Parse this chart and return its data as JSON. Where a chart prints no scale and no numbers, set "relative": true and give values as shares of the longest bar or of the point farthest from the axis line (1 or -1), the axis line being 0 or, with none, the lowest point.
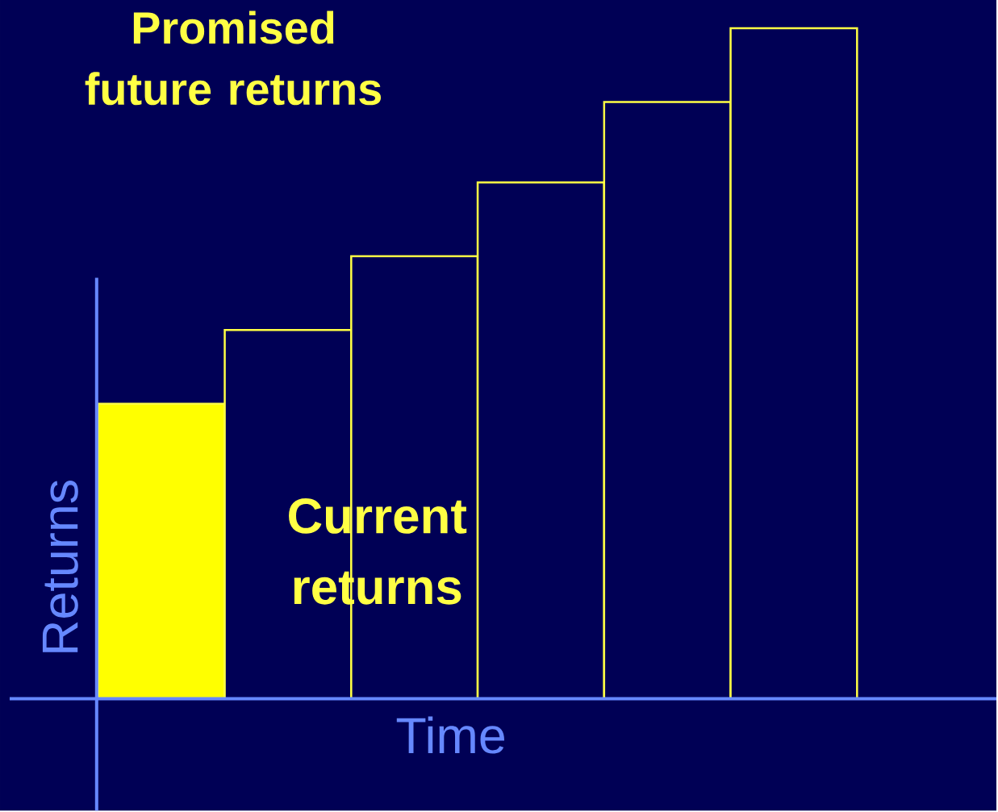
{
  "chart_data": {
    "type": "bar",
    "relative": true,
    "categories": [
      null,
      null,
      null,
      null,
      null,
      null
    ],
    "values": [
      0.44,
      0.55,
      0.66,
      0.77,
      0.89,
      1
    ],
    "color": "#ffff44",
    "colors": [
      "#ffff00",
      "#000055",
      "#000055",
      "#000055",
      "#000055",
      "#000055"
    ],
    "xlabel": "Time",
    "ylabel": "Returns",
    "annotations": [
      "Promised future returns",
      "Current returns"
    ]
  }
}
